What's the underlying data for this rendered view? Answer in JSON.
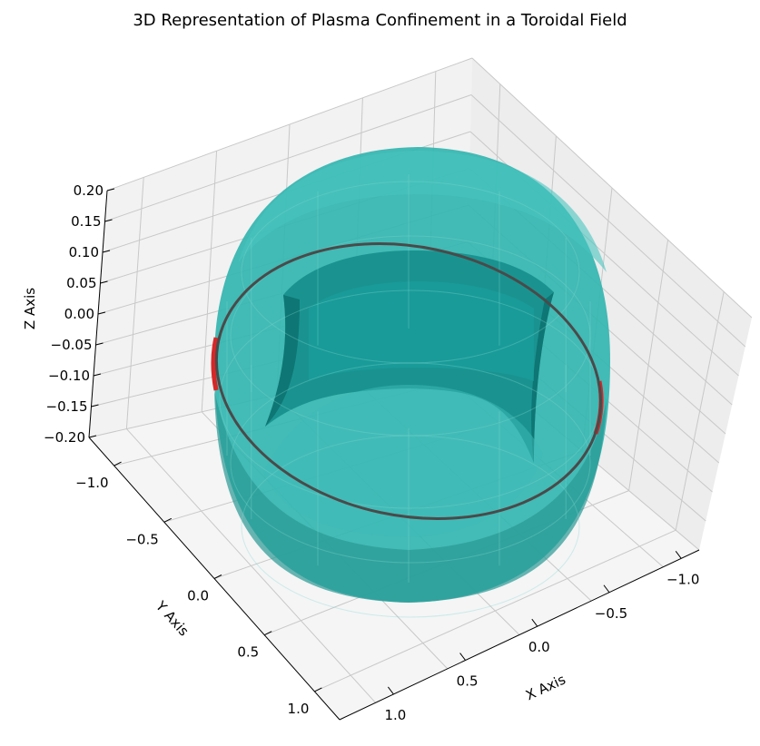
{
  "chart_data": {
    "type": "3d-surface",
    "title": "3D Representation of Plasma Confinement in a Toroidal Field",
    "xlabel": "X Axis",
    "ylabel": "Y Axis",
    "zlabel": "Z Axis",
    "xlim": [
      -1.25,
      1.25
    ],
    "ylim": [
      -1.25,
      1.25
    ],
    "zlim": [
      -0.2,
      0.2
    ],
    "x_ticks": [
      "1.0",
      "0.5",
      "0.0",
      "−0.5",
      "−1.0"
    ],
    "y_ticks": [
      "−1.0",
      "−0.5",
      "0.0",
      "0.5",
      "1.0"
    ],
    "z_ticks": [
      "0.20",
      "0.15",
      "0.10",
      "0.05",
      "0.00",
      "−0.05",
      "−0.10",
      "−0.15",
      "−0.20"
    ],
    "grid": true,
    "surface": {
      "name": "torus",
      "major_radius": 1.0,
      "minor_radius": 0.2,
      "color": "#20b2aa",
      "alpha": 0.8
    },
    "field_line": {
      "radius": 1.0,
      "z": 0.0,
      "color": "#444444"
    },
    "accent_color": "#d62728"
  }
}
